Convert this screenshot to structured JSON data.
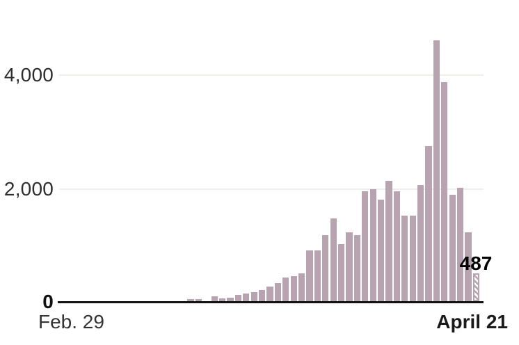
{
  "chart_data": {
    "type": "bar",
    "title": "",
    "xlabel": "",
    "ylabel": "",
    "x_axis": {
      "start_label": "Feb. 29",
      "end_label": "April 21"
    },
    "categories_note": "one bar per day from Feb. 29 through April 21; days before mid-March are near zero and not visible",
    "values": [
      0,
      0,
      0,
      0,
      0,
      0,
      0,
      0,
      0,
      0,
      0,
      0,
      0,
      0,
      0,
      0,
      40,
      35,
      0,
      90,
      50,
      65,
      110,
      135,
      160,
      200,
      260,
      320,
      420,
      445,
      495,
      890,
      890,
      1165,
      1465,
      1010,
      1220,
      1160,
      1935,
      1980,
      1795,
      2120,
      1935,
      1515,
      1515,
      2045,
      2740,
      4600,
      3860,
      1875,
      2005,
      1210,
      487
    ],
    "yticks": [
      0,
      2000,
      4000
    ],
    "ytick_labels": [
      "0",
      "2,000",
      "4,000"
    ],
    "ylim": [
      0,
      4700
    ],
    "grid": "horizontal",
    "legend": "none",
    "last_bar": {
      "value": 487,
      "label": "487",
      "style": "hatched",
      "note": "final day shown as hatched (incomplete) bar with bold data label"
    },
    "colors": {
      "bar": "#b7a4b0",
      "hatch_background": "#ffffff",
      "axis_line": "#121212",
      "gridline": "#f0efe9",
      "tick_label": "#2d2d2d",
      "bold_label": "#111111",
      "annotation": "#000000",
      "background": "#ffffff"
    }
  }
}
